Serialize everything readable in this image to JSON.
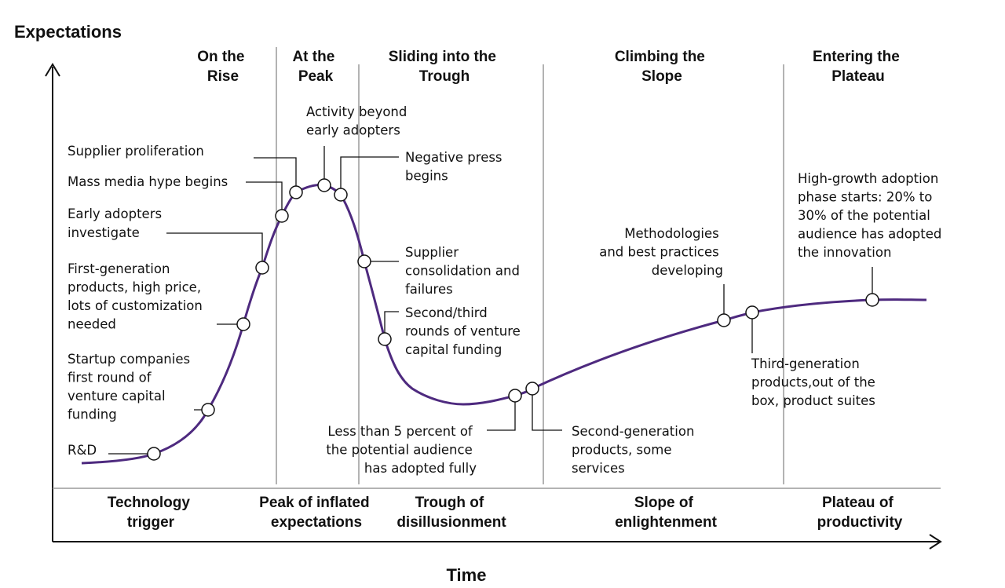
{
  "y_axis_title": "Expectations",
  "x_axis_title": "Time",
  "colors": {
    "curve": "#4e2a7f",
    "text": "#111111",
    "divider": "#9a9a9a"
  },
  "top_phases": [
    {
      "lines": [
        "On the",
        "Rise"
      ]
    },
    {
      "lines": [
        "At the",
        "Peak"
      ]
    },
    {
      "lines": [
        "Sliding into the",
        "Trough"
      ]
    },
    {
      "lines": [
        "Climbing the",
        "Slope"
      ]
    },
    {
      "lines": [
        "Entering the",
        "Plateau"
      ]
    }
  ],
  "bottom_phases": [
    {
      "lines": [
        "Technology",
        "trigger"
      ]
    },
    {
      "lines": [
        "Peak of inflated",
        "expectations"
      ]
    },
    {
      "lines": [
        "Trough of",
        "disillusionment"
      ]
    },
    {
      "lines": [
        "Slope of",
        "enlightenment"
      ]
    },
    {
      "lines": [
        "Plateau of",
        "productivity"
      ]
    }
  ],
  "annotations": [
    {
      "id": "rd",
      "lines": [
        "R&D"
      ]
    },
    {
      "id": "startup",
      "lines": [
        "Startup companies",
        "first round of",
        "venture capital",
        "funding"
      ]
    },
    {
      "id": "first-gen",
      "lines": [
        "First-generation",
        "products, high price,",
        "lots of customization",
        "needed"
      ]
    },
    {
      "id": "early-adopters",
      "lines": [
        "Early adopters",
        "investigate"
      ]
    },
    {
      "id": "mass-media",
      "lines": [
        "Mass media hype begins"
      ]
    },
    {
      "id": "supplier-prolif",
      "lines": [
        "Supplier proliferation"
      ]
    },
    {
      "id": "activity",
      "lines": [
        "Activity beyond",
        "early adopters"
      ]
    },
    {
      "id": "negative-press",
      "lines": [
        "Negative press",
        "begins"
      ]
    },
    {
      "id": "consolidation",
      "lines": [
        "Supplier",
        "consolidation and",
        "failures"
      ]
    },
    {
      "id": "second-third",
      "lines": [
        "Second/third",
        "rounds of venture",
        "capital funding"
      ]
    },
    {
      "id": "less-than",
      "lines": [
        "Less than 5 percent of",
        "the potential audience",
        "has adopted fully"
      ]
    },
    {
      "id": "second-gen",
      "lines": [
        "Second-generation",
        "products, some",
        "services"
      ]
    },
    {
      "id": "methodologies",
      "lines": [
        "Methodologies",
        "and best practices",
        "developing"
      ]
    },
    {
      "id": "third-gen",
      "lines": [
        "Third-generation",
        "products,out of the",
        "box, product suites"
      ]
    },
    {
      "id": "high-growth",
      "lines": [
        "High-growth adoption",
        "phase starts: 20% to",
        "30% of the potential",
        "audience has adopted",
        "the innovation"
      ]
    }
  ]
}
